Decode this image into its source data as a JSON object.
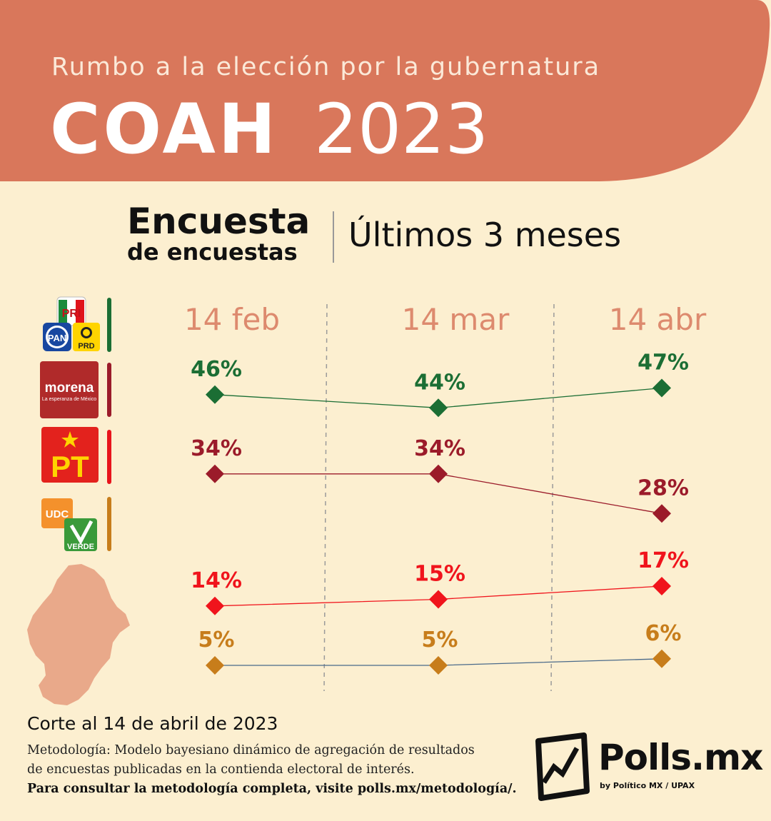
{
  "header": {
    "subtitle": "Rumbo a la elección por la gubernatura",
    "state": "COAH",
    "year": "2023"
  },
  "survey": {
    "title_main": "Encuesta",
    "title_sub": "de encuestas",
    "period": "Últimos 3 meses"
  },
  "parties": [
    {
      "name": "PRI-PAN-PRD",
      "logo_labels": [
        "PRI",
        "PAN",
        "PRD"
      ],
      "color": "#1b6e34"
    },
    {
      "name": "morena",
      "logo_labels": [
        "morena",
        "La esperanza de México"
      ],
      "color": "#9b1b2a"
    },
    {
      "name": "PT",
      "logo_labels": [
        "PT"
      ],
      "color": "#e8141c"
    },
    {
      "name": "UDC-VERDE",
      "logo_labels": [
        "UDC",
        "VERDE"
      ],
      "color": "#c77d1b"
    }
  ],
  "chart_data": {
    "type": "line",
    "x": [
      "14 feb",
      "14 mar",
      "14 abr"
    ],
    "y_unit": "%",
    "grid": "vertical dashed separators between dates",
    "series": [
      {
        "values": [
          46,
          44,
          47
        ],
        "labels": [
          "46%",
          "44%",
          "47%"
        ],
        "color": "#1b6e34"
      },
      {
        "values": [
          34,
          34,
          28
        ],
        "labels": [
          "34%",
          "34%",
          "28%"
        ],
        "color": "#9b1b2a"
      },
      {
        "values": [
          14,
          15,
          17
        ],
        "labels": [
          "14%",
          "15%",
          "17%"
        ],
        "color": "#f0141c"
      },
      {
        "values": [
          5,
          5,
          6
        ],
        "labels": [
          "5%",
          "5%",
          "6%"
        ],
        "color": "#c77d1b"
      }
    ]
  },
  "footer": {
    "cutoff": "Corte al 14 de abril de 2023",
    "methodology_line1": "Metodología: Modelo bayesiano dinámico de agregación de resultados",
    "methodology_line2": "de encuestas publicadas en la contienda electoral de interés.",
    "methodology_link": "Para consultar la metodología completa, visite polls.mx/metodología/."
  },
  "logo": {
    "name": "Polls.mx",
    "byline": "by Político MX  /  UPAX"
  },
  "colors": {
    "banner": "#d9775b",
    "background": "#fcefd0",
    "date_label": "#dd8a6e",
    "map": "#e9a98a"
  }
}
